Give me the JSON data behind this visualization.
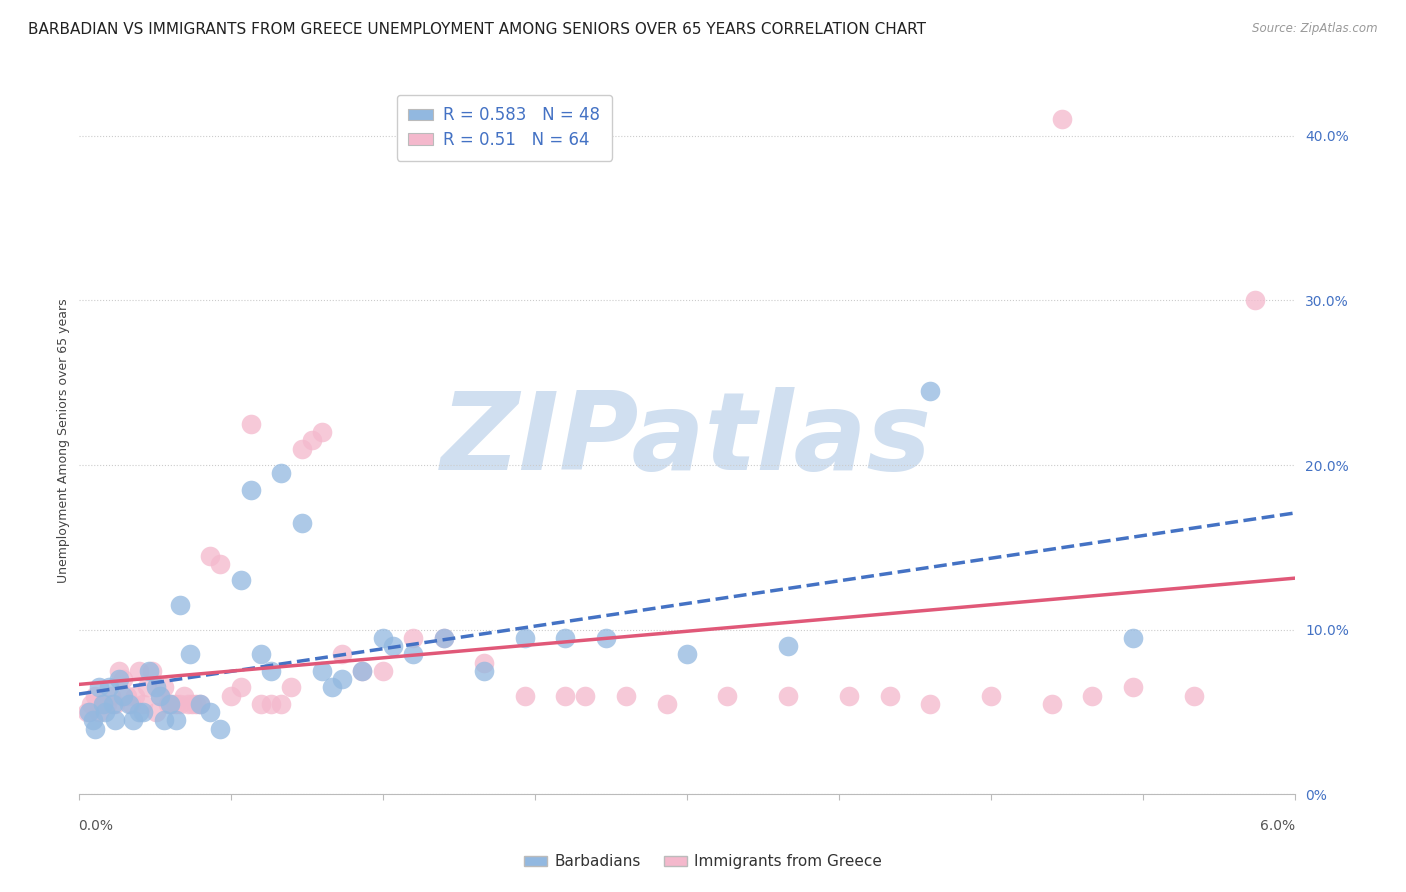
{
  "title": "BARBADIAN VS IMMIGRANTS FROM GREECE UNEMPLOYMENT AMONG SENIORS OVER 65 YEARS CORRELATION CHART",
  "source": "Source: ZipAtlas.com",
  "ylabel": "Unemployment Among Seniors over 65 years",
  "xlim": [
    0.0,
    6.0
  ],
  "ylim": [
    0.0,
    43.0
  ],
  "yticks": [
    0,
    10,
    20,
    30,
    40
  ],
  "ytick_labels": [
    "0%",
    "10.0%",
    "20.0%",
    "30.0%",
    "40.0%"
  ],
  "xtick_labels": [
    "0.0%",
    "6.0%"
  ],
  "series": [
    {
      "name": "Barbadians",
      "R": 0.583,
      "N": 48,
      "color": "#92b8e0",
      "edge_color": "#6899cc",
      "line_color": "#4472c4",
      "line_style": "--",
      "x": [
        0.05,
        0.07,
        0.08,
        0.1,
        0.12,
        0.13,
        0.15,
        0.17,
        0.18,
        0.2,
        0.22,
        0.25,
        0.27,
        0.3,
        0.32,
        0.35,
        0.38,
        0.4,
        0.42,
        0.45,
        0.48,
        0.5,
        0.55,
        0.6,
        0.65,
        0.7,
        0.8,
        0.85,
        0.9,
        0.95,
        1.0,
        1.1,
        1.2,
        1.25,
        1.3,
        1.4,
        1.5,
        1.55,
        1.65,
        1.8,
        2.0,
        2.2,
        2.4,
        2.6,
        3.0,
        3.5,
        4.2,
        5.2
      ],
      "y": [
        5.0,
        4.5,
        4.0,
        6.5,
        5.5,
        5.0,
        6.5,
        5.5,
        4.5,
        7.0,
        6.0,
        5.5,
        4.5,
        5.0,
        5.0,
        7.5,
        6.5,
        6.0,
        4.5,
        5.5,
        4.5,
        11.5,
        8.5,
        5.5,
        5.0,
        4.0,
        13.0,
        18.5,
        8.5,
        7.5,
        19.5,
        16.5,
        7.5,
        6.5,
        7.0,
        7.5,
        9.5,
        9.0,
        8.5,
        9.5,
        7.5,
        9.5,
        9.5,
        9.5,
        8.5,
        9.0,
        24.5,
        9.5
      ]
    },
    {
      "name": "Immigrants from Greece",
      "R": 0.51,
      "N": 64,
      "color": "#f4b8cc",
      "edge_color": "#e090a8",
      "line_color": "#e05878",
      "line_style": "-",
      "x": [
        0.04,
        0.06,
        0.08,
        0.1,
        0.12,
        0.14,
        0.16,
        0.18,
        0.2,
        0.22,
        0.24,
        0.26,
        0.28,
        0.3,
        0.32,
        0.34,
        0.36,
        0.38,
        0.4,
        0.42,
        0.44,
        0.46,
        0.48,
        0.5,
        0.52,
        0.54,
        0.56,
        0.58,
        0.6,
        0.65,
        0.7,
        0.75,
        0.8,
        0.85,
        0.9,
        0.95,
        1.0,
        1.05,
        1.1,
        1.15,
        1.2,
        1.3,
        1.4,
        1.5,
        1.65,
        1.8,
        2.0,
        2.2,
        2.4,
        2.5,
        2.7,
        2.9,
        3.2,
        3.5,
        3.8,
        4.0,
        4.2,
        4.5,
        4.8,
        5.0,
        5.2,
        5.5,
        5.8,
        4.85
      ],
      "y": [
        5.0,
        5.5,
        6.0,
        5.0,
        5.5,
        5.5,
        6.0,
        5.5,
        7.5,
        7.0,
        6.0,
        5.5,
        6.0,
        7.5,
        5.5,
        6.5,
        7.5,
        5.0,
        6.0,
        6.5,
        5.5,
        5.5,
        5.5,
        5.5,
        6.0,
        5.5,
        5.5,
        5.5,
        5.5,
        14.5,
        14.0,
        6.0,
        6.5,
        22.5,
        5.5,
        5.5,
        5.5,
        6.5,
        21.0,
        21.5,
        22.0,
        8.5,
        7.5,
        7.5,
        9.5,
        9.5,
        8.0,
        6.0,
        6.0,
        6.0,
        6.0,
        5.5,
        6.0,
        6.0,
        6.0,
        6.0,
        5.5,
        6.0,
        5.5,
        6.0,
        6.5,
        6.0,
        30.0,
        41.0
      ]
    }
  ],
  "watermark": "ZIPatlas",
  "watermark_color": "#d0dff0",
  "background_color": "#ffffff",
  "grid_color": "#cccccc",
  "title_fontsize": 11,
  "axis_label_fontsize": 9,
  "tick_fontsize": 10,
  "legend_color": "#4472c4"
}
